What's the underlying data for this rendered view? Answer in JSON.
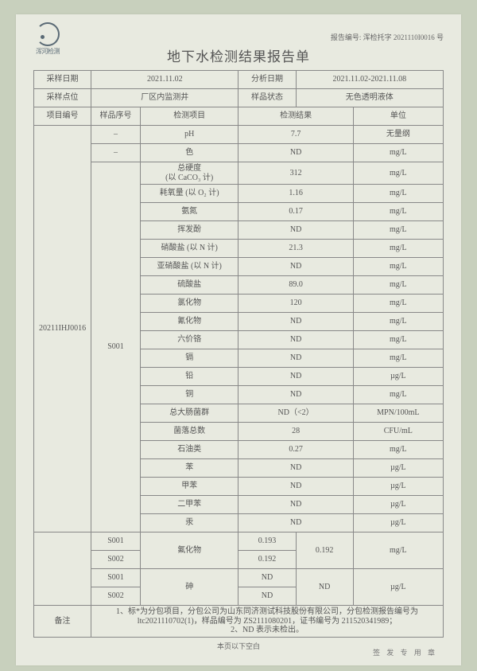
{
  "meta": {
    "company_short": "浑河检测",
    "report_code_label": "报告编号",
    "report_code": "浑检托字 2021110I0016 号",
    "title": "地下水检测结果报告单",
    "footer_blank": "本页以下空白",
    "stamp_text": "签 发 专 用 章"
  },
  "header": {
    "sample_date_label": "采样日期",
    "sample_date": "2021.11.02",
    "analysis_date_label": "分析日期",
    "analysis_date": "2021.11.02-2021.11.08",
    "sample_loc_label": "采样点位",
    "sample_loc": "厂区内监测井",
    "sample_state_label": "样品状态",
    "sample_state": "无色透明液体",
    "col_proj_id": "项目编号",
    "col_sample_id": "样品序号",
    "col_item": "检测项目",
    "col_result": "检测结果",
    "col_unit": "单位"
  },
  "project_id": "20211IHJ0016",
  "main_sample": "S001",
  "rows": [
    {
      "sample": "–",
      "item": "pH",
      "value": "7.7",
      "unit": "无量纲"
    },
    {
      "sample": "–",
      "item": "色",
      "value": "ND",
      "unit": "mg/L"
    },
    {
      "sample": "span",
      "item": "总硬度\n(以 CaCO₃ 计)",
      "value": "312",
      "unit": "mg/L"
    },
    {
      "sample": "span",
      "item": "耗氧量 (以 O₂ 计)",
      "value": "1.16",
      "unit": "mg/L"
    },
    {
      "sample": "span",
      "item": "氨氮",
      "value": "0.17",
      "unit": "mg/L"
    },
    {
      "sample": "span",
      "item": "挥发酚",
      "value": "ND",
      "unit": "mg/L"
    },
    {
      "sample": "span",
      "item": "硝酸盐 (以 N 计)",
      "value": "21.3",
      "unit": "mg/L"
    },
    {
      "sample": "span",
      "item": "亚硝酸盐 (以 N 计)",
      "value": "ND",
      "unit": "mg/L"
    },
    {
      "sample": "span",
      "item": "硫酸盐",
      "value": "89.0",
      "unit": "mg/L"
    },
    {
      "sample": "span",
      "item": "氯化物",
      "value": "120",
      "unit": "mg/L"
    },
    {
      "sample": "span",
      "item": "氰化物",
      "value": "ND",
      "unit": "mg/L"
    },
    {
      "sample": "span",
      "item": "六价铬",
      "value": "ND",
      "unit": "mg/L"
    },
    {
      "sample": "span",
      "item": "镉",
      "value": "ND",
      "unit": "mg/L"
    },
    {
      "sample": "span",
      "item": "铅",
      "value": "ND",
      "unit": "µg/L"
    },
    {
      "sample": "span",
      "item": "铜",
      "value": "ND",
      "unit": "mg/L"
    },
    {
      "sample": "span",
      "item": "总大肠菌群",
      "value": "ND（<2）",
      "unit": "MPN/100mL"
    },
    {
      "sample": "span",
      "item": "菌落总数",
      "value": "28",
      "unit": "CFU/mL"
    },
    {
      "sample": "span",
      "item": "石油类",
      "value": "0.27",
      "unit": "mg/L"
    },
    {
      "sample": "span",
      "item": "苯",
      "value": "ND",
      "unit": "µg/L"
    },
    {
      "sample": "span",
      "item": "甲苯",
      "value": "ND",
      "unit": "µg/L"
    },
    {
      "sample": "span",
      "item": "二甲苯",
      "value": "ND",
      "unit": "µg/L"
    },
    {
      "sample": "span",
      "item": "汞",
      "value": "ND",
      "unit": "µg/L"
    }
  ],
  "dup": {
    "s1": "S001",
    "s2": "S002",
    "fluoride": {
      "item": "氟化物",
      "v1": "0.193",
      "v2": "0.192",
      "avg": "0.192",
      "unit": "mg/L"
    },
    "arsenic": {
      "item": "砷",
      "v1": "ND",
      "v2": "ND",
      "avg": "ND",
      "unit": "µg/L"
    }
  },
  "notes": {
    "label": "备注",
    "text": "1、标*为分包项目，分包公司为山东同济测试科技股份有限公司，分包检测报告编号为 ltc2021110702(1)，样品编号为 ZS2111080201，证书编号为 211520341989；\n2、ND 表示未检出。"
  }
}
